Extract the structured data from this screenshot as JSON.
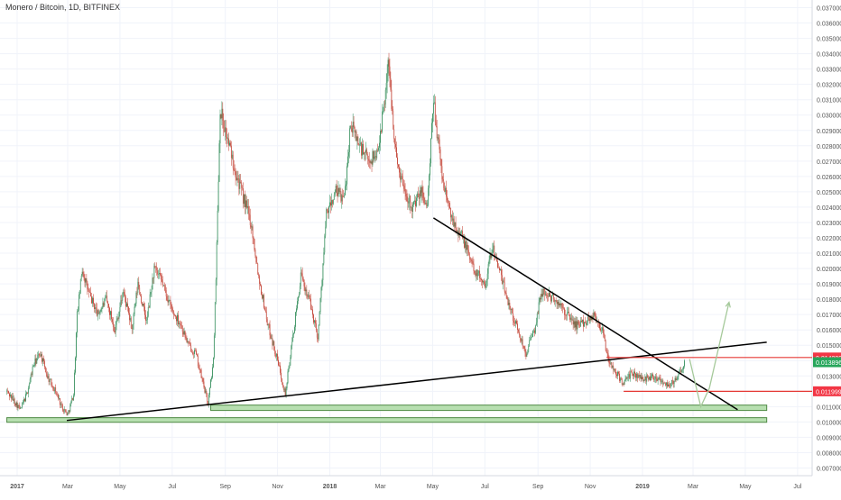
{
  "title": "Monero / Bitcoin, 1D, BITFINEX",
  "chart_data": {
    "type": "candlestick",
    "symbol": "Monero / Bitcoin",
    "interval": "1D",
    "exchange": "BITFINEX",
    "grid": true,
    "ylim": [
      0.0065,
      0.0375
    ],
    "x_ticks": [
      "2017",
      "Mar",
      "May",
      "Jul",
      "Sep",
      "Nov",
      "2018",
      "Mar",
      "May",
      "Jul",
      "Sep",
      "Nov",
      "2019",
      "Mar",
      "May",
      "Jul"
    ],
    "y_ticks": [
      "0.037000",
      "0.036000",
      "0.035000",
      "0.034000",
      "0.033000",
      "0.032000",
      "0.031000",
      "0.030000",
      "0.029000",
      "0.028000",
      "0.027000",
      "0.026000",
      "0.025000",
      "0.024000",
      "0.023000",
      "0.022000",
      "0.021000",
      "0.020000",
      "0.019000",
      "0.018000",
      "0.017000",
      "0.016000",
      "0.015000",
      "0.014000",
      "0.013000",
      "0.012000",
      "0.011000",
      "0.010000",
      "0.009000",
      "0.008000",
      "0.007000"
    ],
    "close_path": [
      [
        "2016-12-20",
        0.012
      ],
      [
        "2017-01-05",
        0.0108
      ],
      [
        "2017-01-12",
        0.0118
      ],
      [
        "2017-01-20",
        0.0137
      ],
      [
        "2017-01-28",
        0.0145
      ],
      [
        "2017-02-05",
        0.013
      ],
      [
        "2017-02-15",
        0.012
      ],
      [
        "2017-02-22",
        0.011
      ],
      [
        "2017-03-01",
        0.0105
      ],
      [
        "2017-03-08",
        0.0118
      ],
      [
        "2017-03-12",
        0.017
      ],
      [
        "2017-03-18",
        0.02
      ],
      [
        "2017-03-25",
        0.0185
      ],
      [
        "2017-04-05",
        0.017
      ],
      [
        "2017-04-15",
        0.018
      ],
      [
        "2017-04-25",
        0.016
      ],
      [
        "2017-05-05",
        0.0185
      ],
      [
        "2017-05-15",
        0.016
      ],
      [
        "2017-05-22",
        0.019
      ],
      [
        "2017-06-01",
        0.0165
      ],
      [
        "2017-06-10",
        0.02
      ],
      [
        "2017-06-20",
        0.019
      ],
      [
        "2017-07-01",
        0.0172
      ],
      [
        "2017-07-10",
        0.0165
      ],
      [
        "2017-07-20",
        0.015
      ],
      [
        "2017-07-28",
        0.0145
      ],
      [
        "2017-08-12",
        0.0112
      ],
      [
        "2017-08-18",
        0.014
      ],
      [
        "2017-08-22",
        0.0215
      ],
      [
        "2017-08-26",
        0.0305
      ],
      [
        "2017-09-01",
        0.029
      ],
      [
        "2017-09-10",
        0.027
      ],
      [
        "2017-09-20",
        0.025
      ],
      [
        "2017-10-01",
        0.023
      ],
      [
        "2017-10-10",
        0.0195
      ],
      [
        "2017-10-20",
        0.0165
      ],
      [
        "2017-11-01",
        0.014
      ],
      [
        "2017-11-10",
        0.0118
      ],
      [
        "2017-11-20",
        0.016
      ],
      [
        "2017-11-28",
        0.0195
      ],
      [
        "2017-12-08",
        0.018
      ],
      [
        "2017-12-18",
        0.0155
      ],
      [
        "2017-12-28",
        0.0235
      ],
      [
        "2018-01-08",
        0.025
      ],
      [
        "2018-01-18",
        0.0245
      ],
      [
        "2018-01-25",
        0.0295
      ],
      [
        "2018-02-05",
        0.028
      ],
      [
        "2018-02-15",
        0.027
      ],
      [
        "2018-02-25",
        0.0275
      ],
      [
        "2018-03-05",
        0.0305
      ],
      [
        "2018-03-10",
        0.0335
      ],
      [
        "2018-03-20",
        0.027
      ],
      [
        "2018-03-30",
        0.025
      ],
      [
        "2018-04-08",
        0.024
      ],
      [
        "2018-04-18",
        0.025
      ],
      [
        "2018-04-25",
        0.024
      ],
      [
        "2018-05-02",
        0.031
      ],
      [
        "2018-05-12",
        0.026
      ],
      [
        "2018-05-22",
        0.0235
      ],
      [
        "2018-06-05",
        0.022
      ],
      [
        "2018-06-18",
        0.02
      ],
      [
        "2018-07-01",
        0.019
      ],
      [
        "2018-07-10",
        0.0215
      ],
      [
        "2018-07-22",
        0.019
      ],
      [
        "2018-08-05",
        0.0165
      ],
      [
        "2018-08-18",
        0.0145
      ],
      [
        "2018-08-28",
        0.016
      ],
      [
        "2018-09-05",
        0.0185
      ],
      [
        "2018-09-20",
        0.018
      ],
      [
        "2018-10-05",
        0.017
      ],
      [
        "2018-10-15",
        0.0163
      ],
      [
        "2018-10-25",
        0.0165
      ],
      [
        "2018-11-05",
        0.017
      ],
      [
        "2018-11-15",
        0.016
      ],
      [
        "2018-11-22",
        0.014
      ],
      [
        "2018-12-01",
        0.0132
      ],
      [
        "2018-12-10",
        0.0125
      ],
      [
        "2018-12-20",
        0.0132
      ],
      [
        "2019-01-01",
        0.0128
      ],
      [
        "2019-01-15",
        0.013
      ],
      [
        "2019-02-01",
        0.0124
      ],
      [
        "2019-02-10",
        0.0128
      ],
      [
        "2019-02-20",
        0.01389
      ]
    ],
    "annotations": {
      "descending_trendline": [
        [
          "2018-05-02",
          0.0233
        ],
        [
          "2019-04-22",
          0.0108
        ]
      ],
      "ascending_trendline": [
        [
          "2017-02-28",
          0.0101
        ],
        [
          "2019-05-26",
          0.0152
        ]
      ],
      "support_zones": [
        {
          "x": [
            "2017-08-15",
            "2019-05-26"
          ],
          "y": [
            0.01075,
            0.0111
          ]
        },
        {
          "x": [
            "2016-12-20",
            "2019-05-26"
          ],
          "y": [
            0.00998,
            0.01028
          ]
        }
      ],
      "resistance_line": {
        "y": 0.014202,
        "x": [
          "2018-11-20",
          "2019-05-26"
        ]
      },
      "support_line": {
        "y": 0.011999,
        "x": [
          "2018-12-10",
          "2019-05-26"
        ]
      },
      "projection_path": [
        [
          "2019-02-25",
          0.0141
        ],
        [
          "2019-03-10",
          0.011
        ],
        [
          "2019-03-20",
          0.0122
        ],
        [
          "2019-04-12",
          0.0178
        ]
      ]
    },
    "price_labels": [
      {
        "text": "0.014202",
        "y": 0.014202,
        "color": "#f23645"
      },
      {
        "text": "0.013896",
        "y": 0.013896,
        "color": "#26a65b"
      },
      {
        "text": "0.011999",
        "y": 0.011999,
        "color": "#f23645"
      }
    ]
  }
}
